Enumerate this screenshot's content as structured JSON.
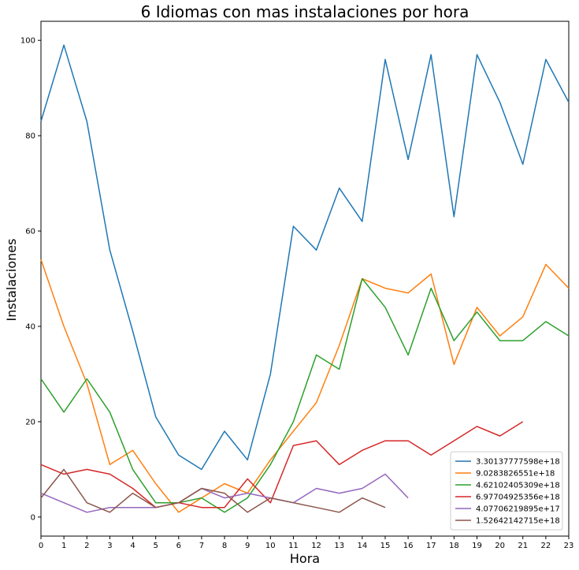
{
  "chart_data": {
    "type": "line",
    "title": "6 Idiomas con mas instalaciones por hora",
    "xlabel": "Hora",
    "ylabel": "Instalaciones",
    "xlim": [
      0,
      23
    ],
    "ylim": [
      -4,
      104
    ],
    "x_ticks": [
      0,
      1,
      2,
      3,
      4,
      5,
      6,
      7,
      8,
      9,
      10,
      11,
      12,
      13,
      14,
      15,
      16,
      17,
      18,
      19,
      20,
      21,
      22,
      23
    ],
    "y_ticks": [
      0,
      20,
      40,
      60,
      80,
      100
    ],
    "grid": false,
    "legend_position": "lower-right",
    "series": [
      {
        "name": "3.30137777598e+18",
        "color": "#1f77b4",
        "x": [
          0,
          1,
          2,
          3,
          4,
          5,
          6,
          7,
          8,
          9,
          10,
          11,
          12,
          13,
          14,
          15,
          16,
          17,
          18,
          19,
          20,
          21,
          22,
          23
        ],
        "y": [
          83,
          99,
          83,
          56,
          39,
          21,
          13,
          10,
          18,
          12,
          30,
          61,
          56,
          69,
          62,
          96,
          75,
          97,
          63,
          97,
          87,
          74,
          96,
          87
        ]
      },
      {
        "name": "9.0283826551e+18",
        "color": "#ff7f0e",
        "x": [
          0,
          1,
          2,
          3,
          4,
          5,
          6,
          7,
          8,
          9,
          10,
          11,
          12,
          13,
          14,
          15,
          16,
          17,
          18,
          19,
          20,
          21,
          22,
          23
        ],
        "y": [
          54,
          40,
          28,
          11,
          14,
          7,
          1,
          4,
          7,
          5,
          12,
          18,
          24,
          36,
          50,
          48,
          47,
          51,
          32,
          44,
          38,
          42,
          53,
          48
        ]
      },
      {
        "name": "4.62102405309e+18",
        "color": "#2ca02c",
        "x": [
          0,
          1,
          2,
          3,
          4,
          5,
          6,
          7,
          8,
          9,
          10,
          11,
          12,
          13,
          14,
          15,
          16,
          17,
          18,
          19,
          20,
          21,
          22,
          23
        ],
        "y": [
          29,
          22,
          29,
          22,
          10,
          3,
          3,
          4,
          1,
          4,
          11,
          20,
          34,
          31,
          50,
          44,
          34,
          48,
          37,
          43,
          37,
          37,
          41,
          38
        ]
      },
      {
        "name": "6.97704925356e+18",
        "color": "#d62728",
        "x": [
          0,
          1,
          2,
          3,
          4,
          5,
          6,
          7,
          8,
          9,
          10,
          11,
          12,
          13,
          14,
          15,
          16,
          17,
          18,
          19,
          20,
          21
        ],
        "y": [
          11,
          9,
          10,
          9,
          6,
          2,
          3,
          2,
          2,
          8,
          3,
          15,
          16,
          11,
          14,
          16,
          16,
          13,
          16,
          19,
          17,
          20
        ]
      },
      {
        "name": "4.07706219895e+17",
        "color": "#9467bd",
        "x": [
          0,
          1,
          2,
          3,
          4,
          5,
          6,
          7,
          8,
          9,
          10,
          11,
          12,
          13,
          14,
          15,
          16
        ],
        "y": [
          5,
          3,
          1,
          2,
          2,
          2,
          3,
          6,
          4,
          5,
          4,
          3,
          6,
          5,
          6,
          9,
          4
        ]
      },
      {
        "name": "1.52642142715e+18",
        "color": "#8c564b",
        "x": [
          0,
          1,
          2,
          3,
          4,
          5,
          6,
          7,
          8,
          9,
          10,
          11,
          12,
          13,
          14,
          15
        ],
        "y": [
          4,
          10,
          3,
          1,
          5,
          2,
          3,
          6,
          5,
          1,
          4,
          3,
          2,
          1,
          4,
          2
        ]
      }
    ]
  }
}
